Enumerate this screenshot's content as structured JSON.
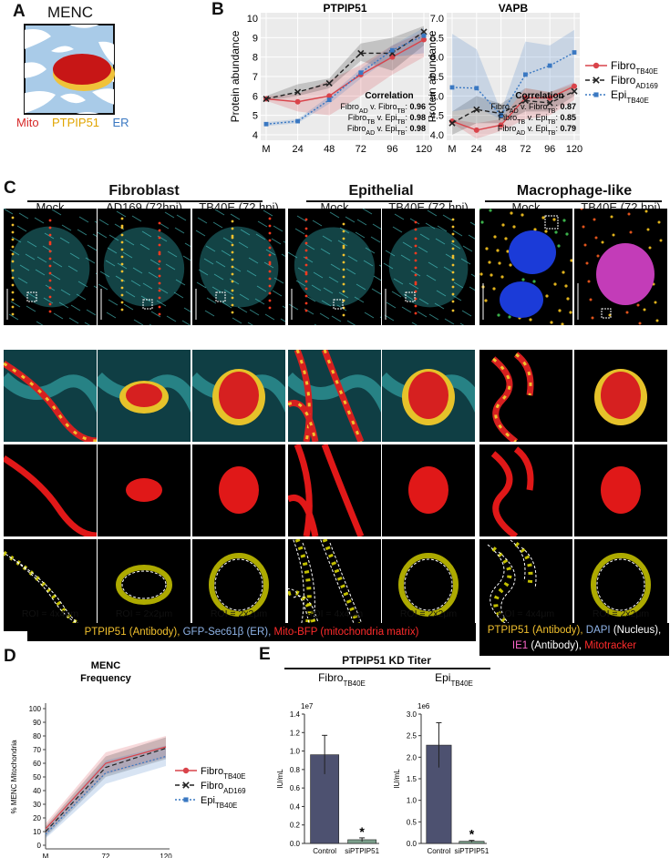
{
  "panel_a": {
    "letter": "A",
    "title": "MENC",
    "labels": [
      {
        "text": "Mito",
        "color": "#d62828"
      },
      {
        "text": "PTPIP51",
        "color": "#e0a400"
      },
      {
        "text": "ER",
        "color": "#3a78c2"
      }
    ]
  },
  "panel_b": {
    "letter": "B",
    "legend": [
      {
        "base": "Fibro",
        "sub": "TB40E",
        "color": "#d9434a",
        "style": "solid-circle"
      },
      {
        "base": "Fibro",
        "sub": "AD169",
        "color": "#222222",
        "style": "dashed-x"
      },
      {
        "base": "Epi",
        "sub": "TB40E",
        "color": "#3a78c2",
        "style": "dotted-square"
      }
    ],
    "charts": [
      {
        "title": "PTPIP51",
        "ylabel": "Protein abundance",
        "x_ticks": [
          "M",
          "24",
          "48",
          "72",
          "96",
          "120"
        ],
        "y_ticks": [
          "4",
          "5",
          "6",
          "7",
          "8",
          "9",
          "10"
        ],
        "ylim": [
          4,
          10
        ],
        "corr_title": "Correlation",
        "corr": [
          {
            "a": "Fibro",
            "as": "AD",
            "b": "Fibro",
            "bs": "TB",
            "v": "0.96"
          },
          {
            "a": "Fibro",
            "as": "TB",
            "b": "Epi",
            "bs": "TB",
            "v": "0.98"
          },
          {
            "a": "Fibro",
            "as": "AD",
            "b": "Epi",
            "bs": "TB",
            "v": "0.98"
          }
        ]
      },
      {
        "title": "VAPB",
        "ylabel": "Protein abundance",
        "x_ticks": [
          "M",
          "24",
          "48",
          "72",
          "96",
          "120"
        ],
        "y_ticks": [
          "4.0",
          "4.5",
          "5.0",
          "5.5",
          "6.0",
          "6.5",
          "7.0"
        ],
        "ylim": [
          4.0,
          7.0
        ],
        "corr_title": "Correlation",
        "corr": [
          {
            "a": "Fibro",
            "as": "AD",
            "b": "Fibro",
            "bs": "TB",
            "v": "0.87"
          },
          {
            "a": "Fibro",
            "as": "TB",
            "b": "Epi",
            "bs": "TB",
            "v": "0.85"
          },
          {
            "a": "Fibro",
            "as": "AD",
            "b": "Epi",
            "bs": "TB",
            "v": "0.79"
          }
        ]
      }
    ]
  },
  "panel_c": {
    "letter": "C",
    "groups": [
      "Fibroblast",
      "Epithelial",
      "Macrophage-like"
    ],
    "columns": [
      "Mock",
      "AD169 (72hpi)",
      "TB40E (72 hpi)",
      "Mock",
      "TB40E (72 hpi)",
      "Mock",
      "TB40E (72 hpi)"
    ],
    "roi": [
      "ROI = 4x4μm",
      "ROI = 2x2μm",
      "ROI = 2x2μm",
      "ROI = 4x4μm",
      "ROI = 2x2μm",
      "ROI = 4x4μm",
      "ROI = 2x2μm"
    ],
    "legend_left": [
      {
        "text": "PTPIP51 (Antibody), ",
        "color": "#f2c12e"
      },
      {
        "text": "GFP-Sec61β (ER), ",
        "color": "#8fb4e8"
      },
      {
        "text": "Mito-BFP (mitochondria matrix)",
        "color": "#ff2b2b"
      }
    ],
    "legend_right_1": [
      {
        "text": "PTPIP51 (Antibody), ",
        "color": "#f2c12e"
      },
      {
        "text": "DAPI ",
        "color": "#8fb4e8"
      },
      {
        "text": "(Nucleus),",
        "color": "#ffffff"
      }
    ],
    "legend_right_2": [
      {
        "text": "IE1 ",
        "color": "#ff66cc"
      },
      {
        "text": "(Antibody), ",
        "color": "#ffffff"
      },
      {
        "text": "Mitotracker",
        "color": "#ff2b2b"
      }
    ]
  },
  "panel_d": {
    "letter": "D",
    "title_line1": "MENC",
    "title_line2": "Frequency",
    "ylabel": "% MENC Mitochondria",
    "x_ticks": [
      "M",
      "72",
      "120"
    ],
    "y_ticks": [
      "0",
      "10",
      "20",
      "30",
      "40",
      "50",
      "60",
      "70",
      "80",
      "90",
      "100"
    ],
    "legend": [
      {
        "base": "Fibro",
        "sub": "TB40E",
        "color": "#d9434a",
        "style": "solid-circle"
      },
      {
        "base": "Fibro",
        "sub": "AD169",
        "color": "#222222",
        "style": "dashed-x"
      },
      {
        "base": "Epi",
        "sub": "TB40E",
        "color": "#3a78c2",
        "style": "dotted-square"
      }
    ]
  },
  "panel_e": {
    "letter": "E",
    "title": "PTPIP51 KD Titer",
    "charts": [
      {
        "title_base": "Fibro",
        "title_sub": "TB40E",
        "exponent": "1e7",
        "ylabel": "IU/mL",
        "y_ticks": [
          "0.0",
          "0.2",
          "0.4",
          "0.6",
          "0.8",
          "1.0",
          "1.2",
          "1.4"
        ],
        "categories": [
          "Control",
          "siPTPIP51"
        ],
        "star": "*"
      },
      {
        "title_base": "Epi",
        "title_sub": "TB40E",
        "exponent": "1e6",
        "ylabel": "IU/mL",
        "y_ticks": [
          "0.0",
          "0.5",
          "1.0",
          "1.5",
          "2.0",
          "2.5",
          "3.0"
        ],
        "categories": [
          "Control",
          "siPTPIP51"
        ],
        "star": "*"
      }
    ]
  },
  "chart_data": [
    {
      "type": "line",
      "title": "PTPIP51",
      "ylabel": "Protein abundance",
      "x": [
        "M",
        "24",
        "48",
        "72",
        "96",
        "120"
      ],
      "ylim": [
        4,
        10
      ],
      "series": [
        {
          "name": "FibroTB40E",
          "values": [
            5.85,
            5.7,
            6.0,
            7.1,
            8.0,
            8.9
          ],
          "lower": [
            5.75,
            5.2,
            5.0,
            6.0,
            7.1,
            8.0
          ],
          "upper": [
            6.0,
            6.1,
            6.8,
            7.6,
            8.6,
            9.3
          ]
        },
        {
          "name": "FibroAD169",
          "values": [
            5.85,
            6.2,
            6.65,
            8.2,
            8.2,
            9.3
          ],
          "lower": [
            5.75,
            6.0,
            6.4,
            7.8,
            7.3,
            8.6
          ],
          "upper": [
            6.0,
            6.6,
            6.9,
            8.7,
            9.0,
            9.6
          ]
        },
        {
          "name": "EpiTB40E",
          "values": [
            4.55,
            4.7,
            5.8,
            7.2,
            8.35,
            9.1
          ],
          "lower": [
            4.45,
            4.6,
            5.6,
            6.9,
            8.0,
            8.2
          ],
          "upper": [
            4.65,
            4.8,
            6.0,
            7.4,
            8.6,
            9.5
          ]
        }
      ]
    },
    {
      "type": "line",
      "title": "VAPB",
      "ylabel": "Protein abundance",
      "x": [
        "M",
        "24",
        "48",
        "72",
        "96",
        "120"
      ],
      "ylim": [
        4.0,
        7.0
      ],
      "series": [
        {
          "name": "FibroTB40E",
          "values": [
            4.35,
            4.12,
            4.25,
            4.95,
            4.95,
            5.25
          ],
          "lower": [
            4.3,
            3.9,
            4.1,
            4.4,
            4.5,
            4.9
          ],
          "upper": [
            4.4,
            4.3,
            4.4,
            5.2,
            5.1,
            5.35
          ]
        },
        {
          "name": "FibroAD169",
          "values": [
            4.3,
            4.65,
            4.55,
            4.88,
            4.82,
            5.12
          ],
          "lower": [
            4.0,
            4.3,
            4.3,
            4.6,
            4.6,
            5.0
          ],
          "upper": [
            4.6,
            5.0,
            4.8,
            5.2,
            5.1,
            5.3
          ]
        },
        {
          "name": "EpiTB40E",
          "values": [
            5.22,
            5.2,
            4.5,
            5.55,
            5.78,
            6.12
          ],
          "lower": [
            4.6,
            4.7,
            4.4,
            5.2,
            5.1,
            5.3
          ],
          "upper": [
            6.6,
            6.2,
            4.6,
            6.4,
            6.3,
            6.7
          ]
        }
      ]
    },
    {
      "type": "line",
      "title": "MENC Frequency",
      "ylabel": "% MENC Mitochondria",
      "x": [
        "M",
        "72",
        "120"
      ],
      "ylim": [
        0,
        100
      ],
      "series": [
        {
          "name": "FibroTB40E",
          "values": [
            12,
            60,
            72
          ],
          "lower": [
            8,
            52,
            64
          ],
          "upper": [
            16,
            68,
            80
          ]
        },
        {
          "name": "FibroAD169",
          "values": [
            10,
            57,
            71
          ],
          "lower": [
            6,
            50,
            63
          ],
          "upper": [
            14,
            65,
            79
          ]
        },
        {
          "name": "EpiTB40E",
          "values": [
            8,
            53,
            65
          ],
          "lower": [
            5,
            45,
            58
          ],
          "upper": [
            12,
            62,
            73
          ]
        }
      ]
    },
    {
      "type": "bar",
      "title": "FibroTB40E",
      "ylabel": "IU/mL",
      "categories": [
        "Control",
        "siPTPIP51"
      ],
      "values": [
        0.96,
        0.04
      ],
      "errors": [
        0.21,
        0.02
      ],
      "ylim": [
        0,
        1.4
      ],
      "scale": "1e7"
    },
    {
      "type": "bar",
      "title": "EpiTB40E",
      "ylabel": "IU/mL",
      "categories": [
        "Control",
        "siPTPIP51"
      ],
      "values": [
        2.28,
        0.05
      ],
      "errors": [
        0.52,
        0.02
      ],
      "ylim": [
        0,
        3.0
      ],
      "scale": "1e6"
    }
  ]
}
